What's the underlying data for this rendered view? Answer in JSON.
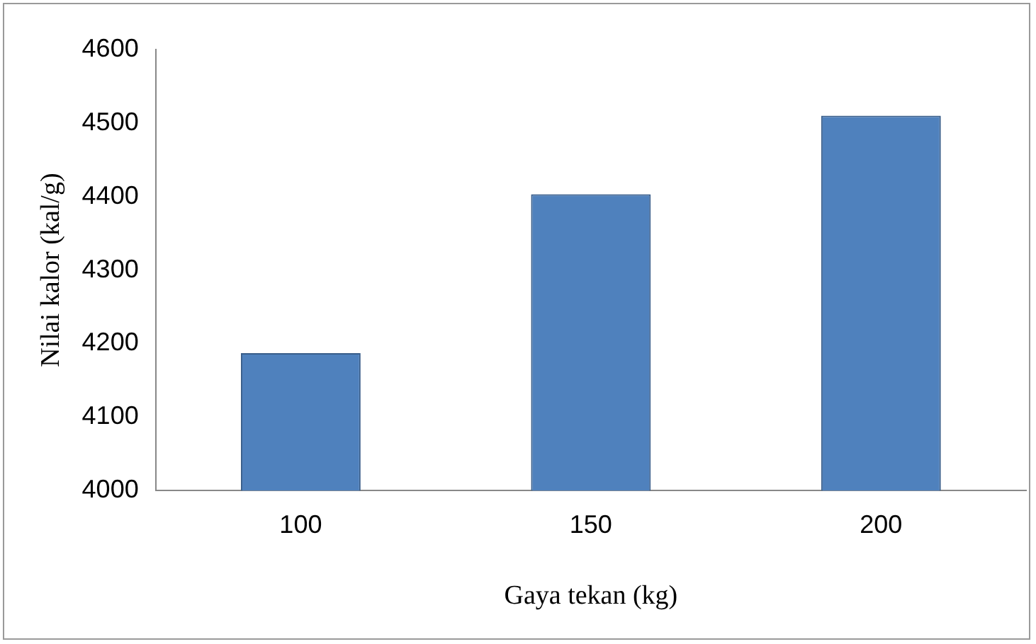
{
  "chart_data": {
    "type": "bar",
    "xlabel": "Gaya tekan (kg)",
    "ylabel": "Nilai kalor (kal/g)",
    "categories": [
      "100",
      "150",
      "200"
    ],
    "values": [
      4187,
      4403,
      4510
    ],
    "color": "#4f81bd",
    "ylim": [
      4000,
      4600
    ],
    "yticks": [
      4000,
      4100,
      4200,
      4300,
      4400,
      4500,
      4600
    ],
    "grid": false,
    "legend": false
  }
}
